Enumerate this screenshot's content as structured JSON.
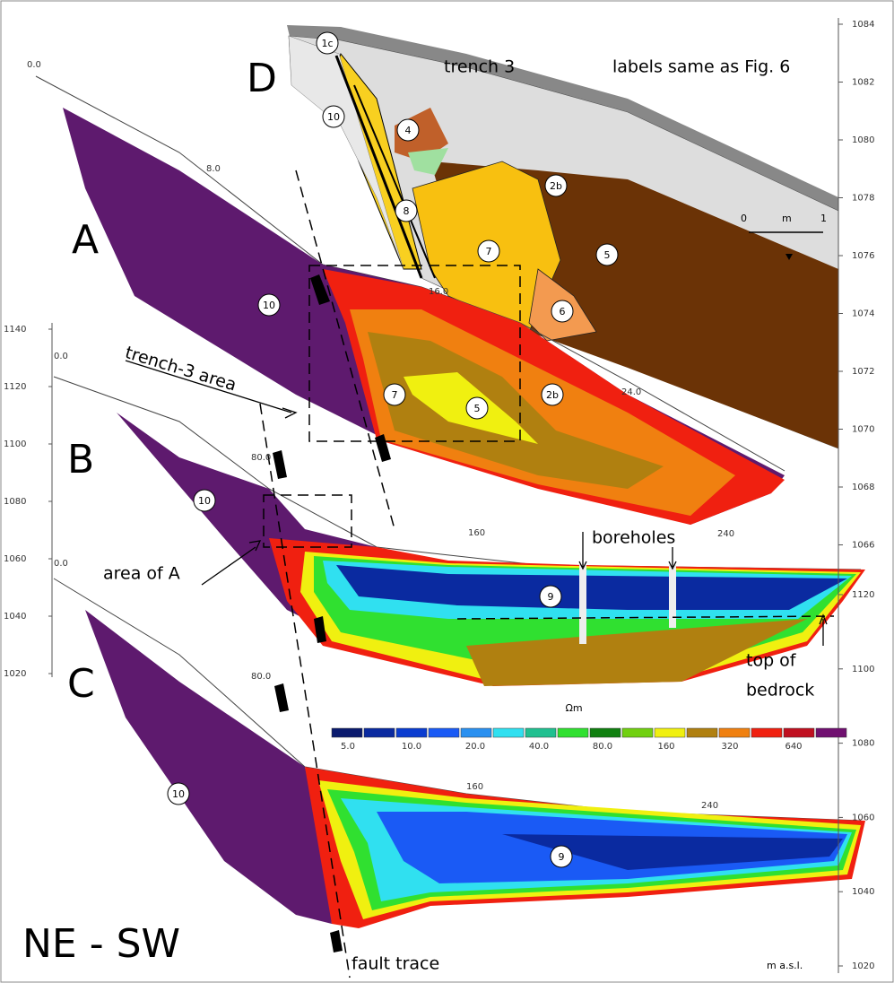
{
  "panels": {
    "a": "A",
    "b": "B",
    "c": "C",
    "d": "D"
  },
  "trench": {
    "title": "trench 3",
    "note": "labels same as Fig. 6",
    "scale": [
      "0",
      "m",
      "1"
    ],
    "units": [
      "1c",
      "10",
      "4",
      "2b",
      "8",
      "7",
      "5",
      "6"
    ]
  },
  "section_a": {
    "distances": [
      "0.0",
      "8.0",
      "16.0",
      "24.0"
    ],
    "units": [
      "10",
      "7",
      "5",
      "2b"
    ]
  },
  "section_b": {
    "distances": [
      "0.0",
      "80.0",
      "160",
      "240"
    ],
    "units": [
      "10",
      "9"
    ]
  },
  "section_c": {
    "distances": [
      "0.0",
      "80.0",
      "160",
      "240"
    ],
    "units": [
      "10",
      "9"
    ]
  },
  "axes": {
    "left": [
      1140,
      1120,
      1100,
      1080,
      1060,
      1040,
      1020
    ],
    "right_upper": [
      1084,
      1082,
      1080,
      1078,
      1076,
      1074,
      1072,
      1070,
      1068,
      1066
    ],
    "right_lower": [
      1120,
      1100,
      1080,
      1060,
      1040,
      1020
    ]
  },
  "legend": {
    "title": "Ωm",
    "labels": [
      "5.0",
      "10.0",
      "20.0",
      "40.0",
      "80.0",
      "160",
      "320",
      "640"
    ],
    "colors": [
      "#0a1a6e",
      "#0a2aa0",
      "#0a3cd0",
      "#1a5af5",
      "#2a90f0",
      "#30e0f0",
      "#20c090",
      "#30e030",
      "#108010",
      "#70d010",
      "#f0f010",
      "#b08010",
      "#f08010",
      "#f02010",
      "#c01020",
      "#701070"
    ]
  },
  "annotations": {
    "trench_area": "trench-3 area",
    "area_a": "area of A",
    "boreholes": "boreholes",
    "bedrock": [
      "top of",
      "bedrock"
    ],
    "fault": "fault trace",
    "direction": "NE - SW",
    "unit": "m a.s.l."
  }
}
